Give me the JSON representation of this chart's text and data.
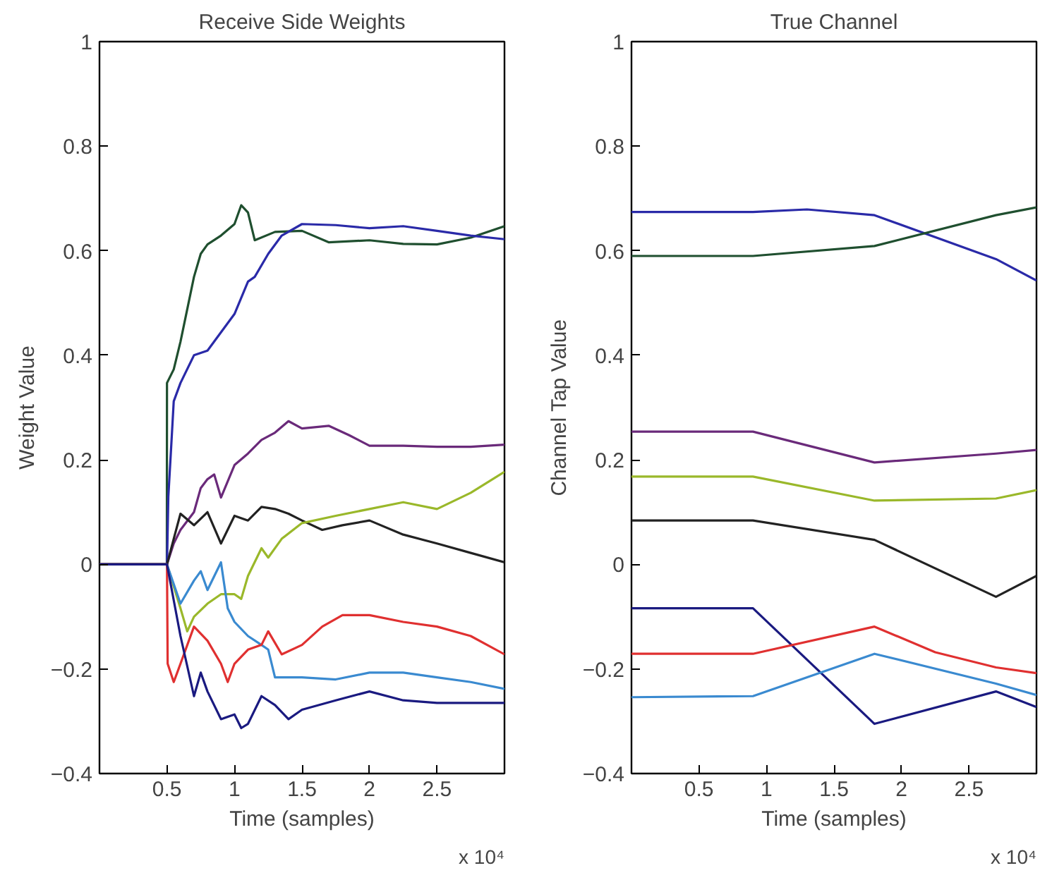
{
  "chart_data": [
    {
      "type": "line",
      "title": "Receive Side Weights",
      "xlabel": "Time (samples)",
      "ylabel": "Weight Value",
      "annotations": [
        "x 10⁴"
      ],
      "xlim": [
        0,
        3
      ],
      "ylim": [
        -0.4,
        1
      ],
      "xticks": [
        0.5,
        1,
        1.5,
        2,
        2.5
      ],
      "yticks": [
        -0.4,
        -0.2,
        0,
        0.2,
        0.4,
        0.6,
        0.8,
        1
      ],
      "grid": false,
      "series": [
        {
          "color": "#1f4f2f",
          "x": [
            0,
            0.499,
            0.5,
            0.55,
            0.6,
            0.7,
            0.75,
            0.8,
            0.9,
            1.0,
            1.05,
            1.1,
            1.15,
            1.3,
            1.5,
            1.7,
            2.0,
            2.25,
            2.5,
            2.75,
            3.0
          ],
          "values": [
            0,
            0,
            0.347,
            0.373,
            0.426,
            0.55,
            0.594,
            0.612,
            0.629,
            0.651,
            0.687,
            0.673,
            0.62,
            0.636,
            0.638,
            0.616,
            0.62,
            0.613,
            0.612,
            0.625,
            0.647
          ]
        },
        {
          "color": "#2a2aa8",
          "x": [
            0,
            0.5,
            0.51,
            0.53,
            0.55,
            0.6,
            0.7,
            0.8,
            0.9,
            1.0,
            1.1,
            1.15,
            1.25,
            1.35,
            1.5,
            1.75,
            2.0,
            2.25,
            2.5,
            2.75,
            3.0
          ],
          "values": [
            0,
            0,
            0.13,
            0.22,
            0.312,
            0.347,
            0.4,
            0.409,
            0.444,
            0.479,
            0.541,
            0.55,
            0.594,
            0.629,
            0.651,
            0.649,
            0.643,
            0.647,
            0.638,
            0.629,
            0.622
          ]
        },
        {
          "color": "#6a2a7a",
          "x": [
            0,
            0.5,
            0.55,
            0.6,
            0.7,
            0.75,
            0.8,
            0.85,
            0.9,
            1.0,
            1.1,
            1.2,
            1.3,
            1.4,
            1.5,
            1.7,
            1.85,
            2.0,
            2.25,
            2.5,
            2.75,
            3.0
          ],
          "values": [
            0,
            0,
            0.04,
            0.066,
            0.1,
            0.146,
            0.163,
            0.172,
            0.128,
            0.19,
            0.212,
            0.238,
            0.252,
            0.274,
            0.26,
            0.265,
            0.247,
            0.227,
            0.227,
            0.225,
            0.225,
            0.229
          ]
        },
        {
          "color": "#222222",
          "x": [
            0,
            0.5,
            0.55,
            0.6,
            0.7,
            0.8,
            0.9,
            1.0,
            1.1,
            1.2,
            1.3,
            1.4,
            1.5,
            1.65,
            1.8,
            2.0,
            2.25,
            2.5,
            2.75,
            3.0
          ],
          "values": [
            0,
            0,
            0.049,
            0.097,
            0.075,
            0.1,
            0.04,
            0.093,
            0.084,
            0.11,
            0.106,
            0.097,
            0.084,
            0.066,
            0.075,
            0.084,
            0.057,
            0.04,
            0.022,
            0.004
          ]
        },
        {
          "color": "#9ab82a",
          "x": [
            0,
            0.5,
            0.6,
            0.65,
            0.7,
            0.8,
            0.9,
            1.0,
            1.05,
            1.1,
            1.2,
            1.25,
            1.35,
            1.5,
            1.75,
            2.0,
            2.25,
            2.5,
            2.75,
            3.0
          ],
          "values": [
            0,
            0,
            -0.084,
            -0.128,
            -0.1,
            -0.075,
            -0.057,
            -0.057,
            -0.066,
            -0.022,
            0.031,
            0.013,
            0.049,
            0.079,
            0.093,
            0.106,
            0.119,
            0.106,
            0.137,
            0.177
          ]
        },
        {
          "color": "#3a8ad0",
          "x": [
            0,
            0.5,
            0.6,
            0.7,
            0.75,
            0.8,
            0.9,
            0.95,
            1.0,
            1.1,
            1.2,
            1.25,
            1.3,
            1.5,
            1.75,
            2.0,
            2.25,
            2.5,
            2.75,
            3.0
          ],
          "values": [
            0,
            0,
            -0.075,
            -0.031,
            -0.013,
            -0.049,
            0.004,
            -0.084,
            -0.11,
            -0.137,
            -0.154,
            -0.163,
            -0.216,
            -0.216,
            -0.22,
            -0.207,
            -0.207,
            -0.216,
            -0.225,
            -0.238
          ]
        },
        {
          "color": "#e03030",
          "x": [
            0,
            0.5,
            0.505,
            0.55,
            0.6,
            0.7,
            0.8,
            0.9,
            0.95,
            1.0,
            1.1,
            1.2,
            1.25,
            1.35,
            1.5,
            1.65,
            1.8,
            2.0,
            2.25,
            2.5,
            2.75,
            3.0
          ],
          "values": [
            0,
            0,
            -0.19,
            -0.225,
            -0.19,
            -0.119,
            -0.146,
            -0.19,
            -0.225,
            -0.19,
            -0.163,
            -0.154,
            -0.128,
            -0.172,
            -0.154,
            -0.119,
            -0.097,
            -0.097,
            -0.11,
            -0.119,
            -0.137,
            -0.172
          ]
        },
        {
          "color": "#1a1a80",
          "x": [
            0,
            0.5,
            0.6,
            0.7,
            0.75,
            0.8,
            0.9,
            1.0,
            1.05,
            1.1,
            1.2,
            1.3,
            1.4,
            1.5,
            1.75,
            2.0,
            2.25,
            2.5,
            2.75,
            3.0
          ],
          "values": [
            0,
            0,
            -0.137,
            -0.252,
            -0.207,
            -0.243,
            -0.296,
            -0.287,
            -0.313,
            -0.305,
            -0.252,
            -0.269,
            -0.296,
            -0.278,
            -0.26,
            -0.243,
            -0.26,
            -0.265,
            -0.265,
            -0.265
          ]
        }
      ]
    },
    {
      "type": "line",
      "title": "True Channel",
      "xlabel": "Time (samples)",
      "ylabel": "Channel Tap Value",
      "annotations": [
        "x 10⁴"
      ],
      "xlim": [
        0,
        3
      ],
      "ylim": [
        -0.4,
        1
      ],
      "xticks": [
        0.5,
        1,
        1.5,
        2,
        2.5
      ],
      "yticks": [
        -0.4,
        -0.2,
        0,
        0.2,
        0.4,
        0.6,
        0.8,
        1
      ],
      "grid": false,
      "series": [
        {
          "color": "#2a2aa8",
          "x": [
            0,
            0.9,
            1.3,
            1.8,
            2.7,
            3.0
          ],
          "values": [
            0.674,
            0.674,
            0.679,
            0.668,
            0.584,
            0.543
          ]
        },
        {
          "color": "#1f4f2f",
          "x": [
            0,
            0.9,
            1.8,
            2.7,
            3.0
          ],
          "values": [
            0.59,
            0.59,
            0.609,
            0.668,
            0.683
          ]
        },
        {
          "color": "#6a2a7a",
          "x": [
            0,
            0.9,
            1.8,
            2.7,
            3.0
          ],
          "values": [
            0.254,
            0.254,
            0.195,
            0.212,
            0.219
          ]
        },
        {
          "color": "#9ab82a",
          "x": [
            0,
            0.9,
            1.8,
            2.7,
            3.0
          ],
          "values": [
            0.168,
            0.168,
            0.122,
            0.126,
            0.142
          ]
        },
        {
          "color": "#222222",
          "x": [
            0,
            0.9,
            1.8,
            2.7,
            3.0
          ],
          "values": [
            0.084,
            0.084,
            0.047,
            -0.062,
            -0.022
          ]
        },
        {
          "color": "#1a1a80",
          "x": [
            0,
            0.9,
            1.8,
            2.7,
            3.0
          ],
          "values": [
            -0.084,
            -0.084,
            -0.305,
            -0.243,
            -0.273
          ]
        },
        {
          "color": "#e03030",
          "x": [
            0,
            0.9,
            1.8,
            2.25,
            2.7,
            3.0
          ],
          "values": [
            -0.171,
            -0.171,
            -0.119,
            -0.168,
            -0.197,
            -0.208
          ]
        },
        {
          "color": "#3a8ad0",
          "x": [
            0,
            0.9,
            1.8,
            2.7,
            3.0
          ],
          "values": [
            -0.254,
            -0.252,
            -0.171,
            -0.228,
            -0.25
          ]
        }
      ]
    }
  ]
}
